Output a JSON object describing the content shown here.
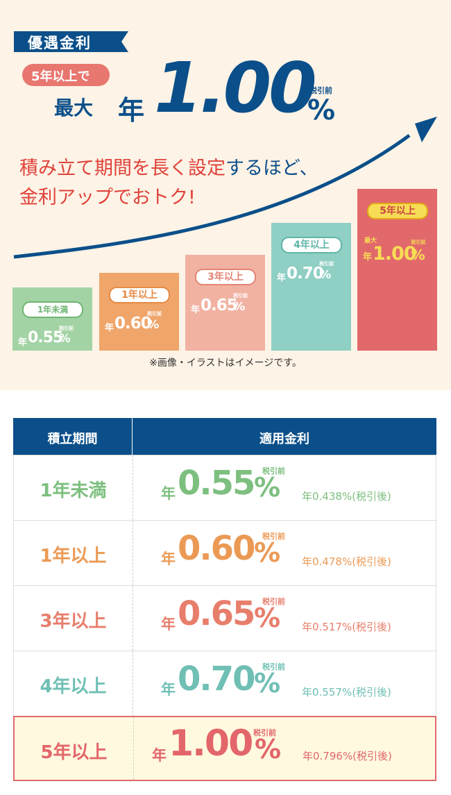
{
  "badge": "優遇金利",
  "headline": {
    "condition": "5年以上で",
    "max": "最大",
    "rate": "1.00"
  },
  "tagline": [
    [
      "積み立て期間を長く設定",
      "するほど、"
    ],
    [
      "金利アップでおトク!"
    ]
  ],
  "units": {
    "year": "年",
    "percent": "%",
    "tax": "税引前"
  },
  "bars": [
    {
      "period": "1年未満",
      "rate": "0.55"
    },
    {
      "period": "1年以上",
      "rate": "0.60"
    },
    {
      "period": "3年以上",
      "rate": "0.65"
    },
    {
      "period": "4年以上",
      "rate": "0.70"
    },
    {
      "period": "5年以上",
      "max": "最大",
      "rate": "1.00"
    }
  ],
  "note": "※画像・イラストはイメージです。",
  "table": {
    "headers": [
      "積立期間",
      "適用金利"
    ],
    "rows": [
      {
        "period": "1年未満",
        "rate": "0.55",
        "after_tax": "年0.438%(税引後)"
      },
      {
        "period": "1年以上",
        "rate": "0.60",
        "after_tax": "年0.478%(税引後)"
      },
      {
        "period": "3年以上",
        "rate": "0.65",
        "after_tax": "年0.517%(税引後)"
      },
      {
        "period": "4年以上",
        "rate": "0.70",
        "after_tax": "年0.557%(税引後)"
      },
      {
        "period": "5年以上",
        "rate": "1.00",
        "after_tax": "年0.796%(税引後)"
      }
    ]
  }
}
